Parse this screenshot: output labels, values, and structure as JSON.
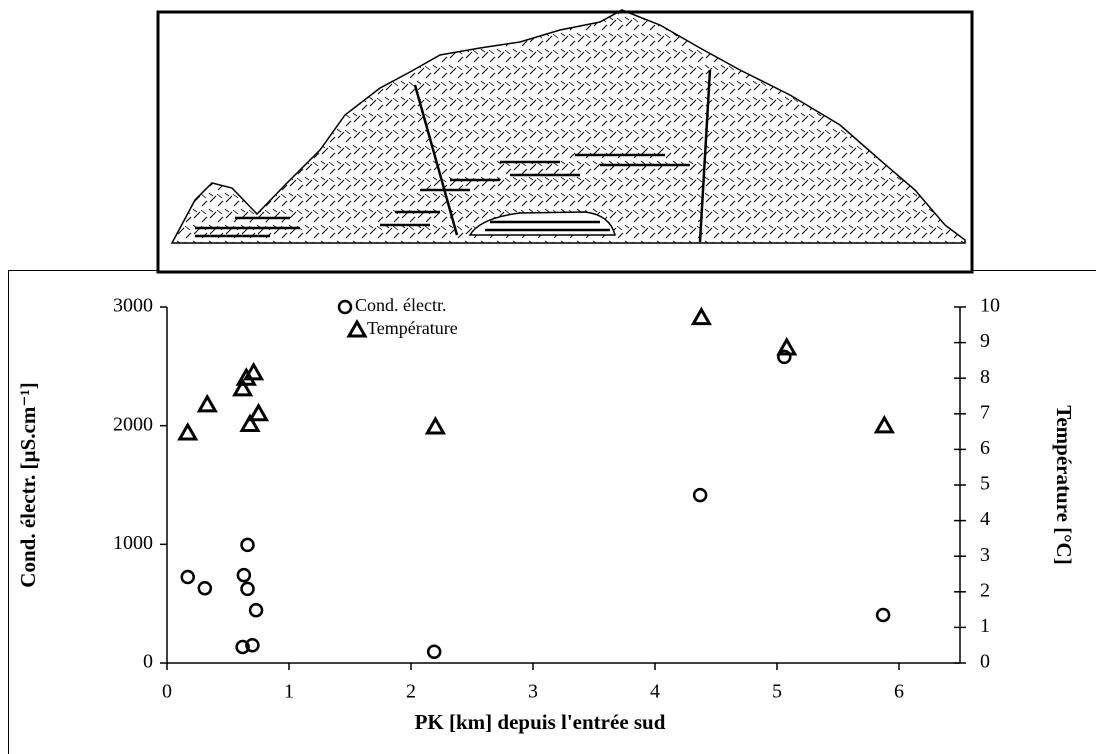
{
  "chart_data": {
    "type": "scatter",
    "xlabel": "PK [km] depuis l'entrée sud",
    "ylabel": "Cond. électr. [µS.cm⁻¹]",
    "y2label": "Température [°C]",
    "xlim": [
      0,
      6.5
    ],
    "xticks": [
      0,
      1,
      2,
      3,
      4,
      5,
      6
    ],
    "ylim": [
      0,
      3000
    ],
    "yticks": [
      0,
      1000,
      2000,
      3000
    ],
    "y2lim": [
      0,
      10
    ],
    "y2ticks": [
      0,
      1,
      2,
      3,
      4,
      5,
      6,
      7,
      8,
      9,
      10
    ],
    "series": [
      {
        "name": "Cond. électr.",
        "color": "#000000",
        "marker": "circle",
        "x": [
          0.17,
          0.31,
          0.66,
          0.63,
          0.66,
          0.73,
          0.62,
          0.7,
          2.19,
          4.37,
          5.06,
          5.87
        ],
        "values": [
          725,
          630,
          995,
          740,
          625,
          445,
          135,
          150,
          95,
          1415,
          2580,
          405
        ]
      },
      {
        "name": "Température",
        "color": "#000000",
        "marker": "triangle",
        "axis": "y2",
        "x": [
          0.17,
          0.33,
          0.62,
          0.65,
          0.71,
          0.68,
          0.75,
          2.2,
          4.38,
          5.08,
          5.88
        ],
        "values": [
          6.46,
          7.25,
          7.7,
          8.0,
          8.15,
          6.7,
          7.0,
          6.63,
          9.7,
          8.85,
          6.66
        ]
      }
    ]
  }
}
